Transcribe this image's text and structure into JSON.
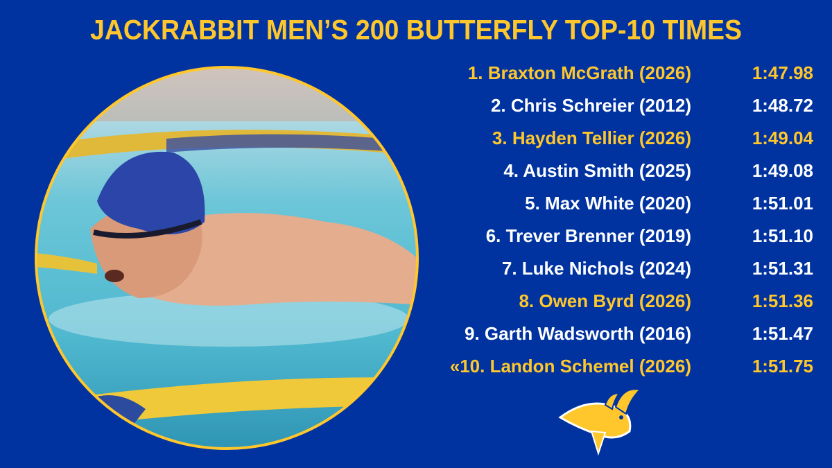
{
  "header": {
    "title": "JACKRABBIT MEN’S 200 BUTTERFLY TOP-10 TIMES"
  },
  "list": {
    "rows": [
      {
        "name": "1. Braxton McGrath (2026)",
        "time": "1:47.98",
        "color": "#ffc72c"
      },
      {
        "name": "2. Chris Schreier (2012)",
        "time": "1:48.72",
        "color": "#ffffff"
      },
      {
        "name": "3. Hayden Tellier (2026)",
        "time": "1:49.04",
        "color": "#ffc72c"
      },
      {
        "name": "4. Austin Smith (2025)",
        "time": "1:49.08",
        "color": "#ffffff"
      },
      {
        "name": "5. Max White (2020)",
        "time": "1:51.01",
        "color": "#ffffff"
      },
      {
        "name": "6. Trever Brenner (2019)",
        "time": "1:51.10",
        "color": "#ffffff"
      },
      {
        "name": "7. Luke Nichols (2024)",
        "time": "1:51.31",
        "color": "#ffffff"
      },
      {
        "name": "8. Owen Byrd (2026)",
        "time": "1:51.36",
        "color": "#ffc72c"
      },
      {
        "name": "9. Garth Wadsworth (2016)",
        "time": "1:51.47",
        "color": "#ffffff"
      },
      {
        "name": "«10. Landon Schemel (2026)",
        "time": "1:51.75",
        "color": "#ffc72c"
      }
    ]
  }
}
